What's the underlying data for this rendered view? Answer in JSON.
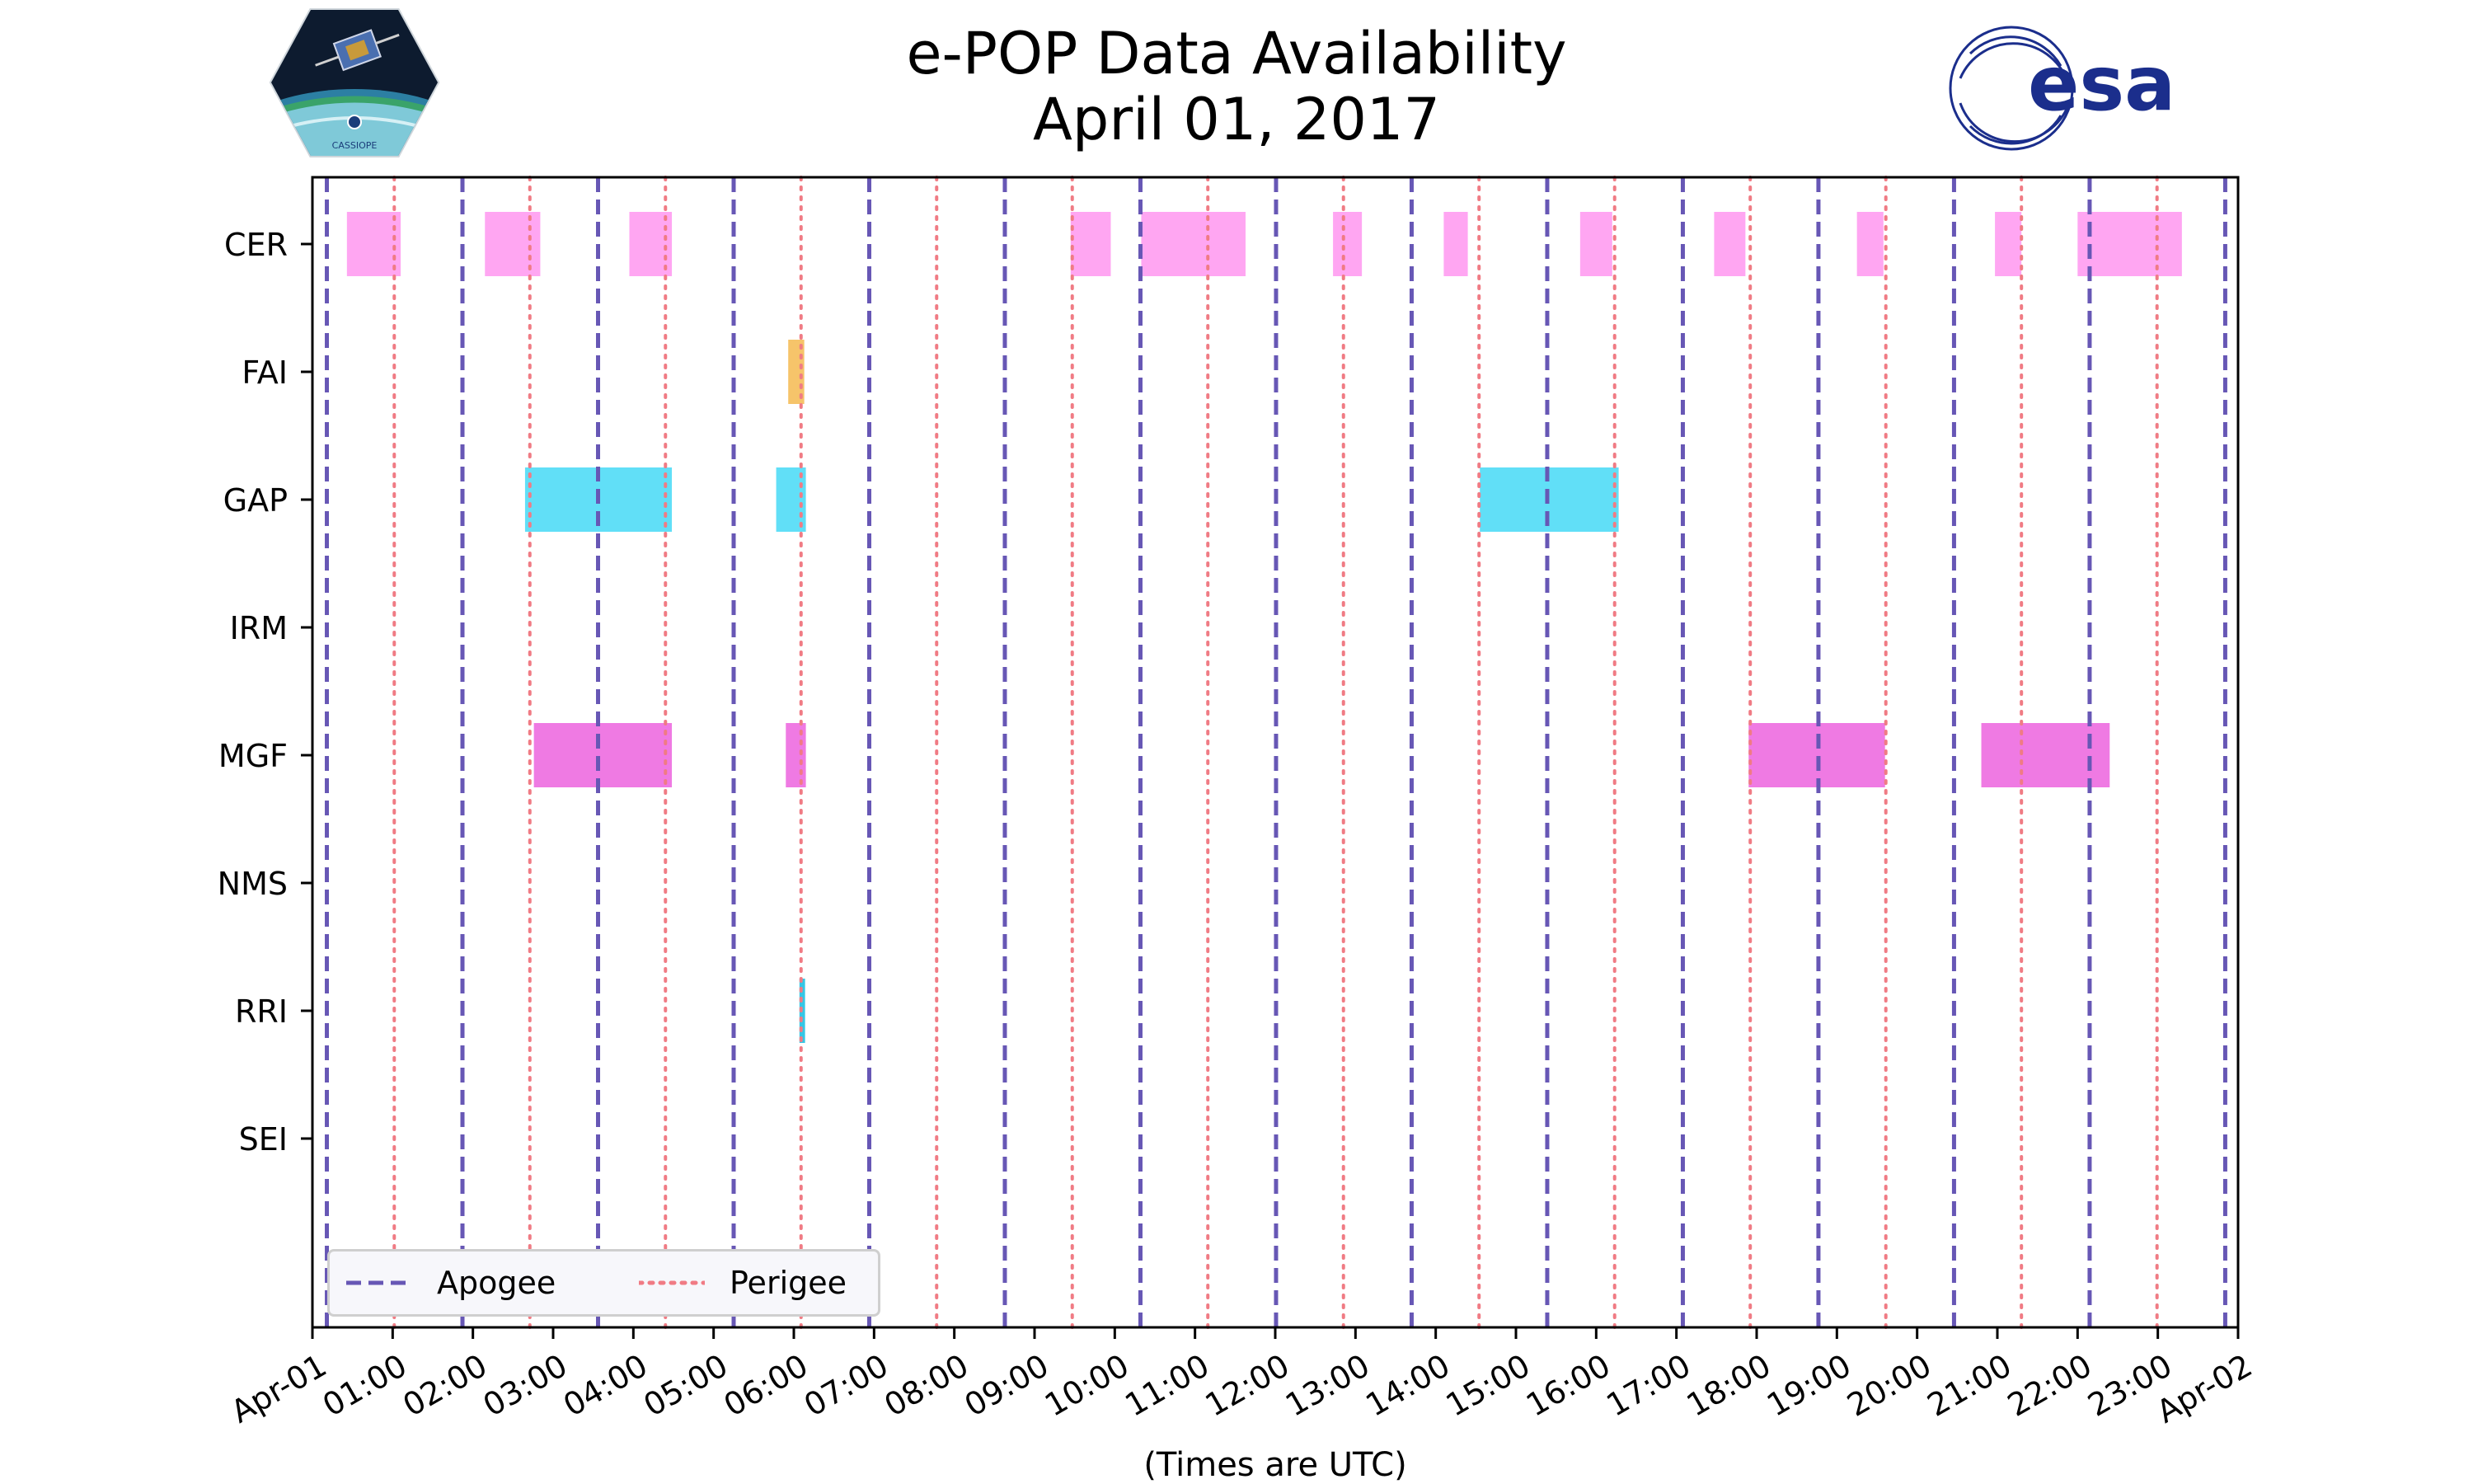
{
  "title": {
    "line1": "e-POP Data Availability",
    "line2": "April 01, 2017"
  },
  "logos": {
    "left": {
      "name": "CASSIOPE",
      "icon": "cassiope-satellite-logo"
    },
    "right": {
      "name": "esa",
      "icon": "esa-logo",
      "color": "#1b2e8c"
    }
  },
  "chart_data": {
    "type": "timeline",
    "title": "e-POP Data Availability April 01, 2017",
    "xlabel": "(Times are UTC)",
    "ylabel": "",
    "x_units": "hours UTC",
    "xlim": [
      0,
      24
    ],
    "x_ticks": [
      {
        "value": 0,
        "label": "Apr-01"
      },
      {
        "value": 1,
        "label": "01:00"
      },
      {
        "value": 2,
        "label": "02:00"
      },
      {
        "value": 3,
        "label": "03:00"
      },
      {
        "value": 4,
        "label": "04:00"
      },
      {
        "value": 5,
        "label": "05:00"
      },
      {
        "value": 6,
        "label": "06:00"
      },
      {
        "value": 7,
        "label": "07:00"
      },
      {
        "value": 8,
        "label": "08:00"
      },
      {
        "value": 9,
        "label": "09:00"
      },
      {
        "value": 10,
        "label": "10:00"
      },
      {
        "value": 11,
        "label": "11:00"
      },
      {
        "value": 12,
        "label": "12:00"
      },
      {
        "value": 13,
        "label": "13:00"
      },
      {
        "value": 14,
        "label": "14:00"
      },
      {
        "value": 15,
        "label": "15:00"
      },
      {
        "value": 16,
        "label": "16:00"
      },
      {
        "value": 17,
        "label": "17:00"
      },
      {
        "value": 18,
        "label": "18:00"
      },
      {
        "value": 19,
        "label": "19:00"
      },
      {
        "value": 20,
        "label": "20:00"
      },
      {
        "value": 21,
        "label": "21:00"
      },
      {
        "value": 22,
        "label": "22:00"
      },
      {
        "value": 23,
        "label": "23:00"
      },
      {
        "value": 24,
        "label": "Apr-02"
      }
    ],
    "instruments": [
      "CER",
      "FAI",
      "GAP",
      "IRM",
      "MGF",
      "NMS",
      "RRI",
      "SEI"
    ],
    "colors": {
      "CER": "#ffa6f2",
      "FAI": "#f6c46a",
      "GAP": "#61dff7",
      "IRM": "#999999",
      "MGF": "#ef7ae3",
      "NMS": "#999999",
      "RRI": "#35c6e4",
      "SEI": "#999999",
      "apogee": "#6757b5",
      "perigee": "#f07b84"
    },
    "intervals": {
      "CER": [
        [
          0.43,
          1.1
        ],
        [
          2.15,
          2.84
        ],
        [
          3.95,
          4.48
        ],
        [
          9.45,
          9.95
        ],
        [
          10.33,
          11.63
        ],
        [
          12.72,
          13.08
        ],
        [
          14.1,
          14.4
        ],
        [
          15.8,
          16.2
        ],
        [
          17.47,
          17.86
        ],
        [
          19.25,
          19.58
        ],
        [
          20.97,
          21.3
        ],
        [
          22.0,
          23.3
        ]
      ],
      "FAI": [
        [
          5.93,
          6.13
        ]
      ],
      "GAP": [
        [
          2.65,
          4.48
        ],
        [
          5.78,
          6.15
        ],
        [
          14.55,
          16.28
        ]
      ],
      "IRM": [],
      "MGF": [
        [
          2.76,
          4.48
        ],
        [
          5.9,
          6.15
        ],
        [
          17.9,
          19.6
        ],
        [
          20.8,
          22.4
        ]
      ],
      "NMS": [],
      "RRI": [
        [
          6.07,
          6.14
        ]
      ],
      "SEI": []
    },
    "apogee": [
      0.18,
      1.87,
      3.56,
      5.25,
      6.94,
      8.63,
      10.32,
      12.01,
      13.7,
      15.39,
      17.08,
      18.77,
      20.46,
      22.15,
      23.84
    ],
    "perigee": [
      1.02,
      2.71,
      4.4,
      6.09,
      7.78,
      9.47,
      11.16,
      12.85,
      14.54,
      16.23,
      17.92,
      19.61,
      21.3,
      22.99
    ],
    "legend": {
      "position": "bottom-left",
      "apogee_label": "Apogee",
      "perigee_label": "Perigee"
    }
  }
}
